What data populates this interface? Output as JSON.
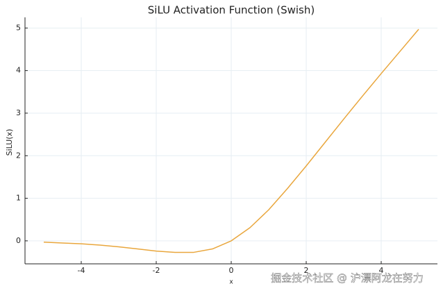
{
  "chart_data": {
    "type": "line",
    "title": "SiLU Activation Function (Swish)",
    "x_label": "x",
    "y_label": "SiLU(x)",
    "x": [
      -5,
      -4.5,
      -4,
      -3.5,
      -3,
      -2.5,
      -2,
      -1.5,
      -1,
      -0.5,
      0,
      0.5,
      1,
      1.5,
      2,
      2.5,
      3,
      3.5,
      4,
      4.5,
      5
    ],
    "series": [
      {
        "color": "#e9a63c",
        "values": [
          -0.03,
          -0.05,
          -0.07,
          -0.1,
          -0.14,
          -0.19,
          -0.24,
          -0.27,
          -0.27,
          -0.19,
          0,
          0.31,
          0.73,
          1.23,
          1.76,
          2.31,
          2.86,
          3.4,
          3.93,
          4.45,
          4.97
        ]
      }
    ],
    "xlim": [
      -5.5,
      5.5
    ],
    "xticks": [
      -4,
      -2,
      0,
      2,
      4
    ],
    "ylim": [
      -0.54,
      5.25
    ],
    "yticks": [
      0,
      1,
      2,
      3,
      4,
      5
    ],
    "grid": true
  },
  "watermark": "掘金技术社区 @ 沪漂阿龙在努力"
}
